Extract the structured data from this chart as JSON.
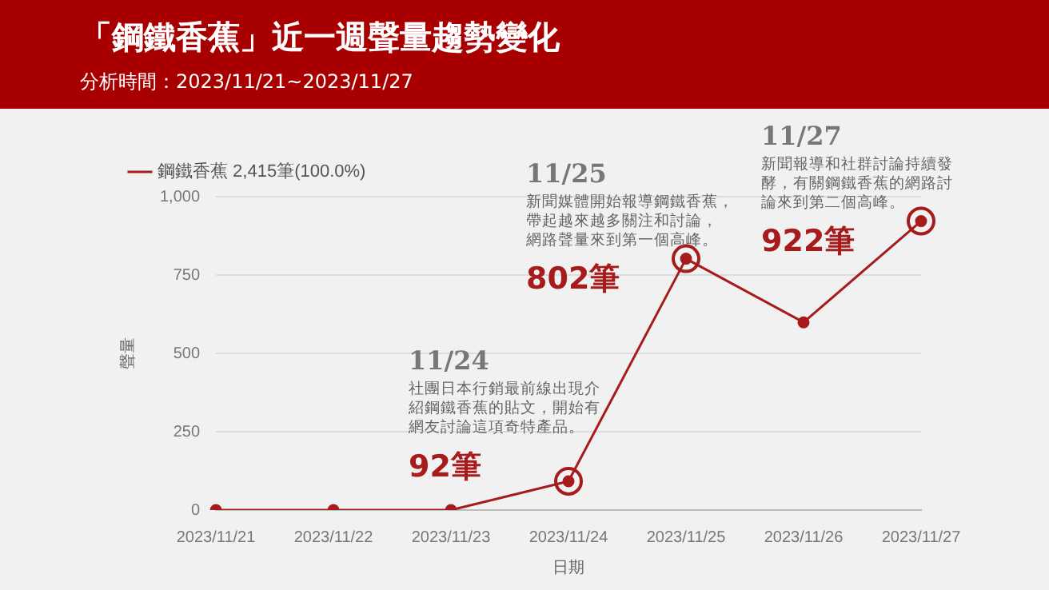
{
  "chart_data": {
    "type": "line",
    "title": "「鋼鐵香蕉」近一週聲量趨勢變化",
    "subtitle": "分析時間：2023/11/21~2023/11/27",
    "xlabel": "日期",
    "ylabel": "聲量",
    "categories": [
      "2023/11/21",
      "2023/11/22",
      "2023/11/23",
      "2023/11/24",
      "2023/11/25",
      "2023/11/26",
      "2023/11/27"
    ],
    "series": [
      {
        "name": "鋼鐵香蕉 2,415筆(100.0%)",
        "color": "#a61c1c",
        "values": [
          0,
          0,
          0,
          92,
          802,
          599,
          922
        ]
      }
    ],
    "ylim": [
      0,
      1000
    ],
    "yticks": [
      0,
      250,
      500,
      750,
      {
        "value": 1000,
        "label": "1,000"
      }
    ],
    "grid": "y",
    "legend": "top",
    "marker": "circle",
    "annotations": [
      "11/24",
      "社團日本行銷最前線出現介紹鋼鐵香蕉的貼文，開始有網友討論這項奇特產品。",
      {
        "text": "92筆",
        "x": "2023/11/24",
        "y": 92
      },
      "11/25",
      "新聞媒體開始報導鋼鐵香蕉，帶起越來越多關注和討論，網路聲量來到第一個高峰。",
      {
        "text": "802筆",
        "x": "2023/11/25",
        "y": 802
      },
      "11/27",
      "新聞報導和社群討論持續發酵，有關鋼鐵香蕉的網路討論來到第二個高峰。",
      {
        "text": "922筆",
        "x": "2023/11/27",
        "y": 922
      }
    ]
  }
}
